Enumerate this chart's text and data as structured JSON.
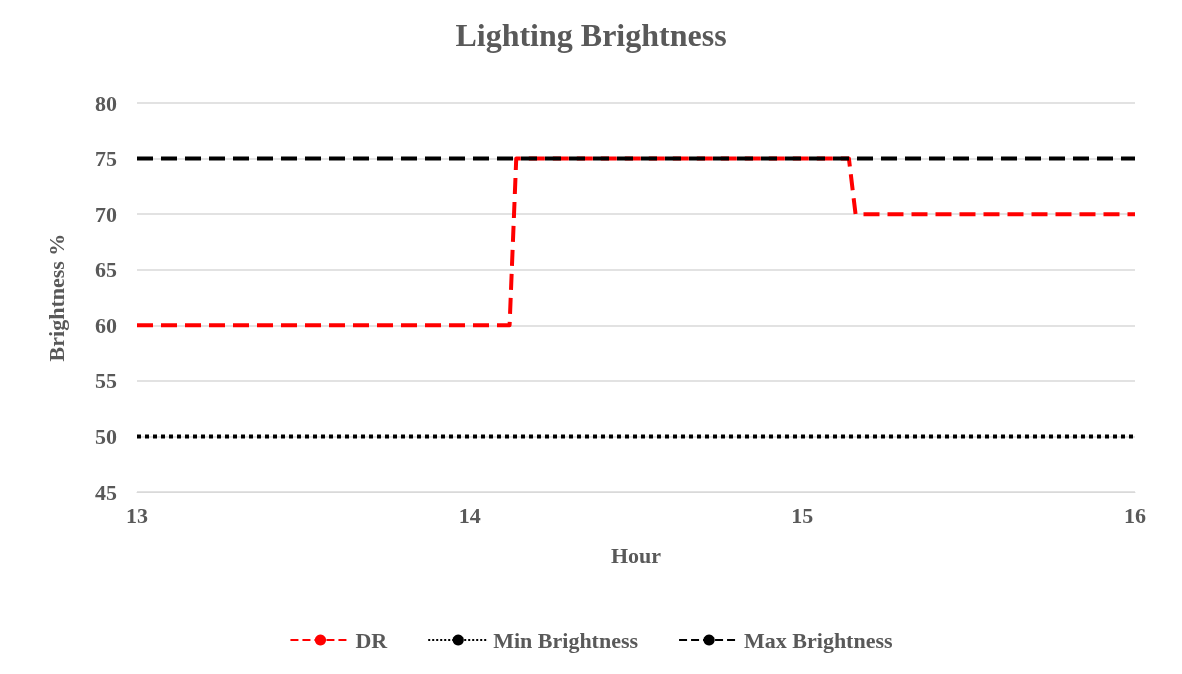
{
  "chart_data": {
    "type": "line",
    "title": "Lighting Brightness",
    "xlabel": "Hour",
    "ylabel": "Brightness %",
    "xlim": [
      13,
      16
    ],
    "xticks": [
      13,
      14,
      15,
      16
    ],
    "ylim": [
      45,
      80
    ],
    "yticks": [
      45,
      50,
      55,
      60,
      65,
      70,
      75,
      80
    ],
    "grid": "y",
    "legend": "bottom",
    "marker": "none",
    "series": [
      {
        "name": "DR",
        "color": "#ff0000",
        "line_style": "dashed",
        "x": [
          13,
          14.12,
          14.14,
          15.14,
          15.16,
          16
        ],
        "values": [
          60,
          60,
          75,
          75,
          70,
          70
        ]
      },
      {
        "name": "Min Brightness",
        "color": "#000000",
        "line_style": "dotted",
        "x": [
          13,
          16
        ],
        "values": [
          50,
          50
        ]
      },
      {
        "name": "Max Brightness",
        "color": "#000000",
        "line_style": "dashed",
        "x": [
          13,
          16
        ],
        "values": [
          75,
          75
        ]
      }
    ]
  }
}
